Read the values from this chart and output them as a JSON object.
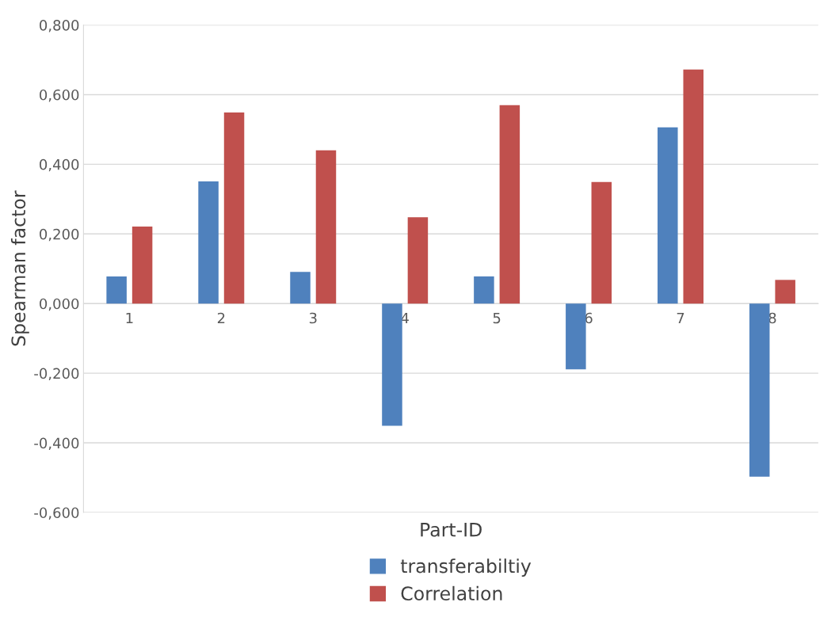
{
  "chart_data": {
    "type": "bar",
    "xlabel": "Part-ID",
    "ylabel": "Spearman factor",
    "categories": [
      "1",
      "2",
      "3",
      "4",
      "5",
      "6",
      "7",
      "8"
    ],
    "series": [
      {
        "name": "transferabiltiy",
        "color": "#4f81bd",
        "values": [
          0.078,
          0.351,
          0.091,
          -0.351,
          0.078,
          -0.189,
          0.506,
          -0.497
        ]
      },
      {
        "name": "Correlation",
        "color": "#c0504d",
        "values": [
          0.221,
          0.549,
          0.44,
          0.248,
          0.57,
          0.349,
          0.672,
          0.068
        ]
      }
    ],
    "ylim": [
      -0.6,
      0.8
    ],
    "yticks": [
      {
        "value": -0.6,
        "label": "-0,600"
      },
      {
        "value": -0.4,
        "label": "-0,400"
      },
      {
        "value": -0.2,
        "label": "-0,200"
      },
      {
        "value": 0,
        "label": "0,000"
      },
      {
        "value": 0.2,
        "label": "0,200"
      },
      {
        "value": 0.4,
        "label": "0,400"
      },
      {
        "value": 0.6,
        "label": "0,600"
      },
      {
        "value": 0.8,
        "label": "0,800"
      }
    ],
    "grid": "y",
    "legend": "bottom"
  }
}
